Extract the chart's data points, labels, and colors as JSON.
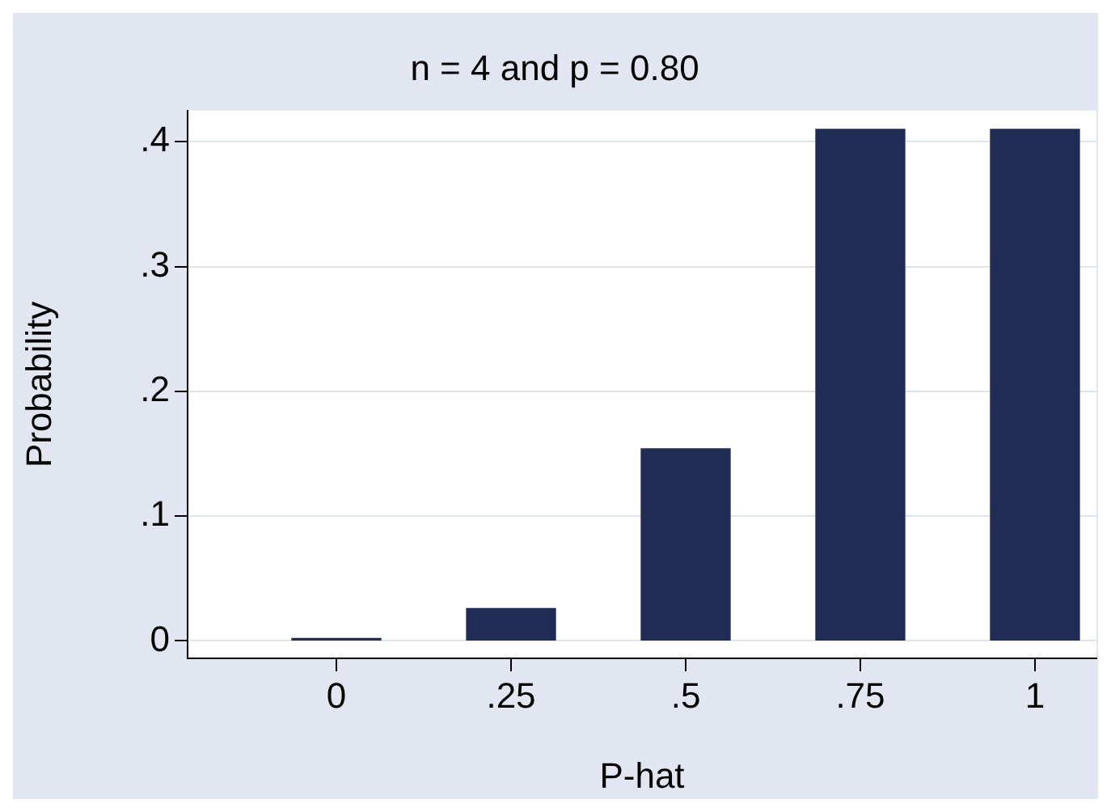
{
  "chart_data": {
    "type": "bar",
    "title": "n = 4 and p = 0.80",
    "xlabel": "P-hat",
    "ylabel": "Probability",
    "x": [
      0,
      0.25,
      0.5,
      0.75,
      1
    ],
    "values": [
      0.002,
      0.026,
      0.154,
      0.41,
      0.41
    ],
    "color": "#1f2c53",
    "xlim": [
      -0.213,
      1.088
    ],
    "xticks": [
      0,
      {
        "value": 0.25,
        "label": ".25"
      },
      {
        "value": 0.5,
        "label": ".5"
      },
      {
        "value": 0.75,
        "label": ".75"
      },
      1
    ],
    "ylim": [
      -0.014,
      0.425
    ],
    "yticks": [
      0,
      {
        "value": 0.1,
        "label": ".1"
      },
      {
        "value": 0.2,
        "label": ".2"
      },
      {
        "value": 0.3,
        "label": ".3"
      },
      {
        "value": 0.4,
        "label": ".4"
      }
    ],
    "grid": "y",
    "legend": false
  }
}
